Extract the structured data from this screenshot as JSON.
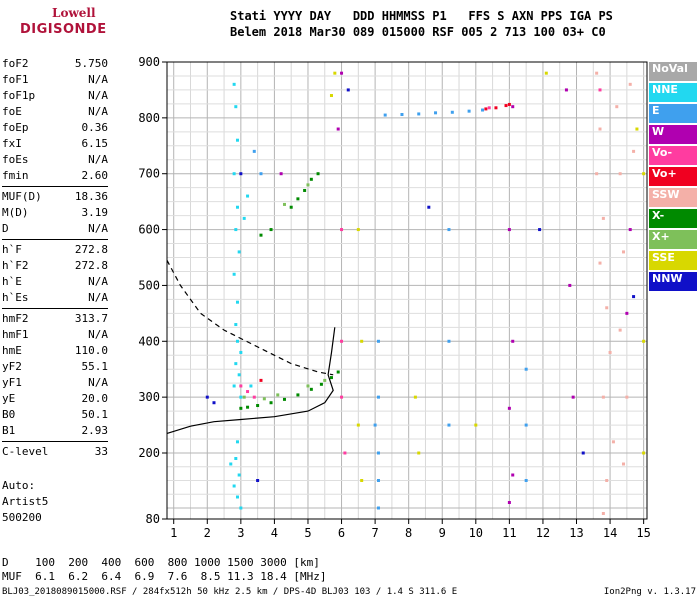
{
  "logo": {
    "line1": "Lowell",
    "line2": "DIGISONDE"
  },
  "header": {
    "line1": "Stati YYYY DAY   DDD HHMMSS P1   FFS S AXN PPS IGA PS",
    "line2": "Belem 2018 Mar30 089 015000 RSF 005 2 713 100 03+ C0"
  },
  "params": [
    {
      "k": "foF2",
      "v": "5.750"
    },
    {
      "k": "foF1",
      "v": "N/A"
    },
    {
      "k": "foF1p",
      "v": "N/A"
    },
    {
      "k": "foE",
      "v": "N/A"
    },
    {
      "k": "foEp",
      "v": "0.36"
    },
    {
      "k": "fxI",
      "v": "6.15"
    },
    {
      "k": "foEs",
      "v": "N/A"
    },
    {
      "k": "fmin",
      "v": "2.60"
    },
    {
      "k": "MUF(D)",
      "v": "18.36"
    },
    {
      "k": "M(D)",
      "v": "3.19"
    },
    {
      "k": "D",
      "v": "N/A"
    },
    {
      "k": "h`F",
      "v": "272.8"
    },
    {
      "k": "h`F2",
      "v": "272.8"
    },
    {
      "k": "h`E",
      "v": "N/A"
    },
    {
      "k": "h`Es",
      "v": "N/A"
    },
    {
      "k": "hmF2",
      "v": "313.7"
    },
    {
      "k": "hmF1",
      "v": "N/A"
    },
    {
      "k": "hmE",
      "v": "110.0"
    },
    {
      "k": "yF2",
      "v": "55.1"
    },
    {
      "k": "yF1",
      "v": "N/A"
    },
    {
      "k": "yE",
      "v": "20.0"
    },
    {
      "k": "B0",
      "v": "50.1"
    },
    {
      "k": "B1",
      "v": "2.93"
    },
    {
      "k": "C-level",
      "v": "33"
    }
  ],
  "auto": {
    "l1": "Auto:",
    "l2": "Artist5",
    "l3": "500200"
  },
  "legend": [
    {
      "label": "NoVal",
      "color": "#a8a8a8"
    },
    {
      "label": "NNE",
      "color": "#22d8f0"
    },
    {
      "label": "E",
      "color": "#3fa0ee"
    },
    {
      "label": "W",
      "color": "#b000b0"
    },
    {
      "label": "Vo-",
      "color": "#ff3ca0"
    },
    {
      "label": "Vo+",
      "color": "#f00020"
    },
    {
      "label": "SSW",
      "color": "#f4b0a8"
    },
    {
      "label": "X-",
      "color": "#008a00"
    },
    {
      "label": "X+",
      "color": "#7ec05a"
    },
    {
      "label": "SSE",
      "color": "#d8d800"
    },
    {
      "label": "NNW",
      "color": "#1010c8"
    }
  ],
  "dtable": {
    "d_row": "D    100  200  400  600  800 1000 1500 3000 [km]",
    "muf_row": "MUF  6.1  6.2  6.4  6.9  7.6  8.5 11.3 18.4 [MHz]"
  },
  "footer": {
    "text": "BLJ03_2018089015000.RSF / 284fx512h 50 kHz 2.5 km / DPS-4D BLJ03 103 / 1.4 S 311.6 E",
    "version": "Ion2Png v. 1.3.17"
  },
  "chart_data": {
    "type": "scatter",
    "xlim": [
      0.8,
      15.1
    ],
    "ylim": [
      80,
      900
    ],
    "x_ticks": [
      1,
      2,
      3,
      4,
      5,
      6,
      7,
      8,
      9,
      10,
      11,
      12,
      13,
      14,
      15
    ],
    "y_ticks": [
      80,
      200,
      300,
      400,
      500,
      600,
      700,
      800,
      900
    ],
    "grid": true,
    "series": [
      {
        "color": "#22d8f0",
        "points": [
          [
            2.8,
            860
          ],
          [
            2.85,
            820
          ],
          [
            2.9,
            760
          ],
          [
            2.8,
            700
          ],
          [
            2.9,
            640
          ],
          [
            2.85,
            600
          ],
          [
            2.95,
            560
          ],
          [
            2.8,
            520
          ],
          [
            2.9,
            470
          ],
          [
            2.85,
            430
          ],
          [
            2.9,
            400
          ],
          [
            3.0,
            380
          ],
          [
            2.85,
            360
          ],
          [
            2.95,
            340
          ],
          [
            2.8,
            320
          ],
          [
            2.9,
            220
          ],
          [
            2.85,
            190
          ],
          [
            2.95,
            160
          ],
          [
            2.8,
            140
          ],
          [
            2.9,
            120
          ],
          [
            3.0,
            100
          ],
          [
            3.1,
            620
          ],
          [
            3.2,
            660
          ],
          [
            3.0,
            300
          ],
          [
            3.3,
            320
          ],
          [
            2.7,
            180
          ]
        ]
      },
      {
        "color": "#3fa0ee",
        "points": [
          [
            7.1,
            400
          ],
          [
            7.1,
            300
          ],
          [
            7.1,
            200
          ],
          [
            7.1,
            150
          ],
          [
            7.1,
            100
          ],
          [
            7.0,
            250
          ],
          [
            11.5,
            350
          ],
          [
            11.5,
            250
          ],
          [
            11.5,
            150
          ],
          [
            7.3,
            805
          ],
          [
            7.8,
            806
          ],
          [
            8.3,
            807
          ],
          [
            8.8,
            809
          ],
          [
            9.3,
            810
          ],
          [
            9.8,
            812
          ],
          [
            10.2,
            814
          ],
          [
            3.6,
            700
          ],
          [
            3.4,
            740
          ],
          [
            9.2,
            600
          ],
          [
            9.2,
            400
          ],
          [
            9.2,
            250
          ]
        ]
      },
      {
        "color": "#b000b0",
        "points": [
          [
            11.1,
            820
          ],
          [
            11.0,
            600
          ],
          [
            11.1,
            400
          ],
          [
            11.0,
            280
          ],
          [
            11.1,
            160
          ],
          [
            11.0,
            110
          ],
          [
            12.8,
            500
          ],
          [
            12.9,
            300
          ],
          [
            12.7,
            850
          ],
          [
            4.2,
            700
          ],
          [
            5.9,
            780
          ],
          [
            14.6,
            600
          ],
          [
            14.5,
            450
          ],
          [
            6.0,
            880
          ]
        ]
      },
      {
        "color": "#ff3ca0",
        "points": [
          [
            6.0,
            600
          ],
          [
            6.0,
            400
          ],
          [
            6.0,
            300
          ],
          [
            6.1,
            200
          ],
          [
            3.0,
            320
          ],
          [
            3.2,
            310
          ],
          [
            3.4,
            300
          ],
          [
            13.7,
            850
          ],
          [
            10.4,
            818
          ]
        ]
      },
      {
        "color": "#f00020",
        "points": [
          [
            10.3,
            816
          ],
          [
            10.6,
            818
          ],
          [
            10.9,
            822
          ],
          [
            11.0,
            824
          ],
          [
            3.6,
            330
          ]
        ]
      },
      {
        "color": "#f4b0a8",
        "points": [
          [
            13.6,
            880
          ],
          [
            13.7,
            780
          ],
          [
            13.6,
            700
          ],
          [
            13.8,
            620
          ],
          [
            13.7,
            540
          ],
          [
            13.9,
            460
          ],
          [
            14.0,
            380
          ],
          [
            13.8,
            300
          ],
          [
            14.1,
            220
          ],
          [
            13.9,
            150
          ],
          [
            13.8,
            90
          ],
          [
            14.2,
            820
          ],
          [
            14.3,
            700
          ],
          [
            14.4,
            560
          ],
          [
            14.3,
            420
          ],
          [
            14.5,
            300
          ],
          [
            14.4,
            180
          ],
          [
            14.6,
            860
          ],
          [
            14.7,
            740
          ]
        ]
      },
      {
        "color": "#008a00",
        "points": [
          [
            3.0,
            280
          ],
          [
            3.2,
            282
          ],
          [
            3.5,
            285
          ],
          [
            3.9,
            290
          ],
          [
            4.3,
            296
          ],
          [
            4.7,
            304
          ],
          [
            5.1,
            314
          ],
          [
            5.4,
            323
          ],
          [
            5.7,
            335
          ],
          [
            5.9,
            345
          ],
          [
            4.5,
            640
          ],
          [
            4.7,
            655
          ],
          [
            4.9,
            670
          ],
          [
            5.1,
            690
          ],
          [
            5.3,
            700
          ],
          [
            3.6,
            590
          ],
          [
            3.9,
            600
          ]
        ]
      },
      {
        "color": "#7ec05a",
        "points": [
          [
            3.1,
            300
          ],
          [
            3.7,
            297
          ],
          [
            4.1,
            304
          ],
          [
            5.0,
            320
          ],
          [
            5.5,
            330
          ],
          [
            4.3,
            645
          ],
          [
            5.0,
            680
          ]
        ]
      },
      {
        "color": "#d8d800",
        "points": [
          [
            5.8,
            880
          ],
          [
            5.7,
            840
          ],
          [
            6.5,
            600
          ],
          [
            6.6,
            400
          ],
          [
            6.5,
            250
          ],
          [
            6.6,
            150
          ],
          [
            8.2,
            300
          ],
          [
            8.3,
            200
          ],
          [
            12.1,
            880
          ],
          [
            15.0,
            700
          ],
          [
            15.0,
            400
          ],
          [
            15.0,
            200
          ],
          [
            14.8,
            780
          ],
          [
            10.0,
            250
          ]
        ]
      },
      {
        "color": "#1010c8",
        "points": [
          [
            2.0,
            300
          ],
          [
            2.2,
            290
          ],
          [
            3.0,
            700
          ],
          [
            3.5,
            150
          ],
          [
            6.2,
            850
          ],
          [
            11.9,
            600
          ],
          [
            13.2,
            200
          ],
          [
            14.7,
            480
          ],
          [
            8.6,
            640
          ]
        ]
      }
    ],
    "annotation_curves": [
      {
        "style": "solid",
        "points": [
          [
            0.8,
            235
          ],
          [
            1.5,
            248
          ],
          [
            2.2,
            256
          ],
          [
            3.0,
            260
          ],
          [
            4.0,
            265
          ],
          [
            5.0,
            275
          ],
          [
            5.5,
            290
          ],
          [
            5.75,
            312
          ],
          [
            5.6,
            340
          ],
          [
            5.7,
            380
          ],
          [
            5.8,
            425
          ]
        ]
      },
      {
        "style": "dashed",
        "points": [
          [
            0.8,
            545
          ],
          [
            1.2,
            500
          ],
          [
            1.8,
            450
          ],
          [
            2.5,
            420
          ],
          [
            3.5,
            390
          ],
          [
            4.5,
            360
          ],
          [
            5.3,
            345
          ],
          [
            5.75,
            340
          ]
        ]
      }
    ]
  }
}
